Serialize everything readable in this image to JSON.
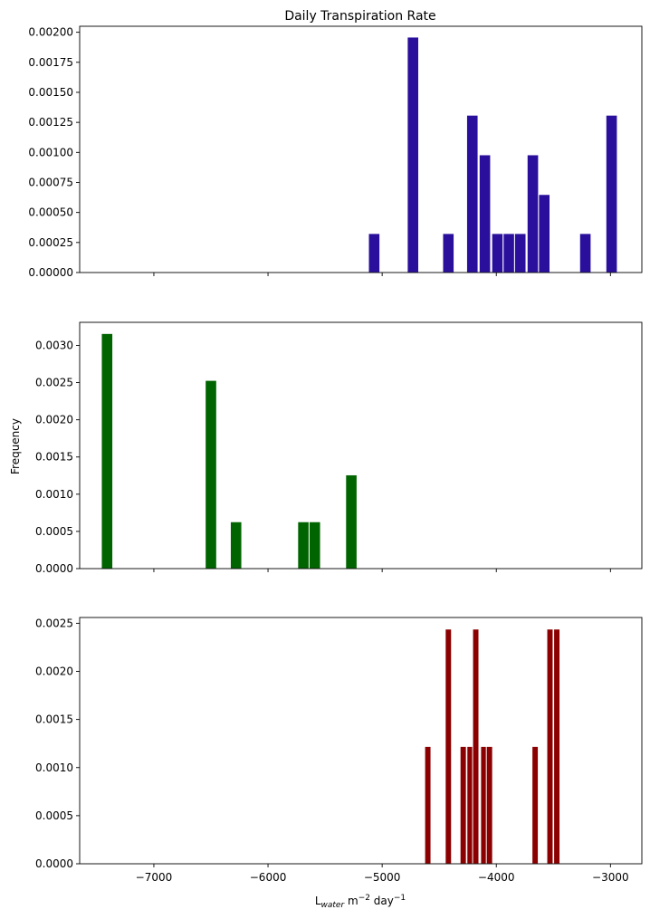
{
  "chart_data": [
    {
      "type": "bar",
      "title": "Daily Transpiration Rate",
      "ylabel": "",
      "xlabel": "",
      "color": "#2a0f9c",
      "bar_width": 100,
      "xlim": [
        -7650,
        -2725
      ],
      "ylim": [
        0,
        0.00205
      ],
      "yticks": [
        0,
        0.00025,
        0.0005,
        0.00075,
        0.001,
        0.00125,
        0.0015,
        0.00175,
        0.002
      ],
      "ytick_labels": [
        "0.00000",
        "0.00025",
        "0.00050",
        "0.00075",
        "0.00100",
        "0.00125",
        "0.00150",
        "0.00175",
        "0.00200"
      ],
      "show_xtick_labels": false,
      "x": [
        -5070,
        -4730,
        -4420,
        -4210,
        -4100,
        -3990,
        -3890,
        -3790,
        -3680,
        -3580,
        -3220,
        -2990
      ],
      "values": [
        0.000325,
        0.00196,
        0.000325,
        0.00131,
        0.00098,
        0.000325,
        0.000325,
        0.000325,
        0.00098,
        0.00065,
        0.000325,
        0.00131
      ]
    },
    {
      "type": "bar",
      "title": "",
      "ylabel": "Frequency",
      "xlabel": "",
      "color": "#006400",
      "bar_width": 100,
      "xlim": [
        -7650,
        -2725
      ],
      "ylim": [
        0,
        0.00331
      ],
      "yticks": [
        0,
        0.0005,
        0.001,
        0.0015,
        0.002,
        0.0025,
        0.003
      ],
      "ytick_labels": [
        "0.0000",
        "0.0005",
        "0.0010",
        "0.0015",
        "0.0020",
        "0.0025",
        "0.0030"
      ],
      "show_xtick_labels": false,
      "x": [
        -7410,
        -6500,
        -6280,
        -5690,
        -5590,
        -5270
      ],
      "values": [
        0.00316,
        0.00253,
        0.00063,
        0.00063,
        0.00063,
        0.00126
      ]
    },
    {
      "type": "bar",
      "title": "",
      "ylabel": "",
      "xlabel": "L_water m^-2 day^-1",
      "color": "#8b0000",
      "bar_width": 55,
      "xlim": [
        -7650,
        -2725
      ],
      "ylim": [
        0,
        0.00256
      ],
      "yticks": [
        0,
        0.0005,
        0.001,
        0.0015,
        0.002,
        0.0025
      ],
      "ytick_labels": [
        "0.0000",
        "0.0005",
        "0.0010",
        "0.0015",
        "0.0020",
        "0.0025"
      ],
      "show_xtick_labels": true,
      "xticks": [
        -7000,
        -6000,
        -5000,
        -4000,
        -3000
      ],
      "xtick_labels": [
        "−7000",
        "−6000",
        "−5000",
        "−4000",
        "−3000"
      ],
      "x": [
        -4600,
        -4420,
        -4290,
        -4230,
        -4180,
        -4110,
        -4060,
        -3660,
        -3530,
        -3470
      ],
      "values": [
        0.00122,
        0.00244,
        0.00122,
        0.00122,
        0.00244,
        0.00122,
        0.00122,
        0.00122,
        0.00244,
        0.00244
      ]
    }
  ],
  "labels": {
    "title": "Daily Transpiration Rate",
    "ylabel": "Frequency",
    "xlabel_main": "L",
    "xlabel_sub": "water",
    "xlabel_unit1": " m",
    "xlabel_exp1": "−2",
    "xlabel_unit2": " day",
    "xlabel_exp2": "−1"
  }
}
